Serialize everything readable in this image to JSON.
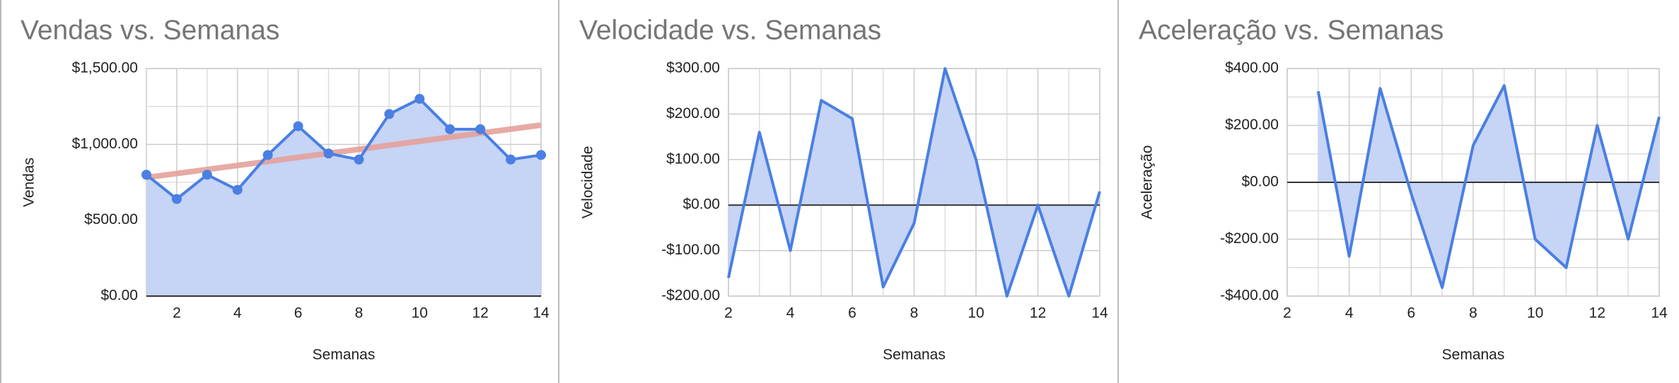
{
  "chart_data": [
    {
      "type": "area-line",
      "title": "Vendas vs. Semanas",
      "x_label": "Semanas",
      "y_label": "Vendas",
      "x": [
        1,
        2,
        3,
        4,
        5,
        6,
        7,
        8,
        9,
        10,
        11,
        12,
        13,
        14
      ],
      "series": [
        {
          "color": "#4a7fe3",
          "fill": "#c6d4f5",
          "markers": true,
          "values": [
            800,
            640,
            800,
            700,
            930,
            1120,
            940,
            900,
            1200,
            1300,
            1100,
            1100,
            900,
            930
          ]
        }
      ],
      "trendline": {
        "color": "#e3a19b"
      },
      "xlim": [
        1,
        14
      ],
      "xticks": [
        2,
        4,
        6,
        8,
        10,
        12,
        14
      ],
      "ylim": [
        0,
        1500
      ],
      "yticks": [
        {
          "value": 0,
          "label": "$0.00"
        },
        {
          "value": 500,
          "label": "$500.00"
        },
        {
          "value": 1000,
          "label": "$1,000.00"
        },
        {
          "value": 1500,
          "label": "$1,500.00"
        }
      ],
      "grid": true,
      "y_minor_grid": true
    },
    {
      "type": "area-line",
      "title": "Velocidade vs. Semanas",
      "x_label": "Semanas",
      "y_label": "Velocidade",
      "x": [
        1,
        2,
        3,
        4,
        5,
        6,
        7,
        8,
        9,
        10,
        11,
        12,
        13,
        14
      ],
      "series": [
        {
          "color": "#4a7fe3",
          "fill": "#c6d4f5",
          "markers": false,
          "values": [
            null,
            -160,
            160,
            -100,
            230,
            190,
            -180,
            -40,
            300,
            100,
            -200,
            0,
            -200,
            30
          ]
        }
      ],
      "xlim": [
        2,
        14
      ],
      "xticks": [
        2,
        4,
        6,
        8,
        10,
        12,
        14
      ],
      "ylim": [
        -200,
        300
      ],
      "yticks": [
        {
          "value": -200,
          "label": "-$200.00"
        },
        {
          "value": -100,
          "label": "-$100.00"
        },
        {
          "value": 0,
          "label": "$0.00"
        },
        {
          "value": 100,
          "label": "$100.00"
        },
        {
          "value": 200,
          "label": "$200.00"
        },
        {
          "value": 300,
          "label": "$300.00"
        }
      ],
      "grid": true,
      "y_minor_grid": false
    },
    {
      "type": "area-line",
      "title": "Aceleração vs. Semanas",
      "x_label": "Semanas",
      "y_label": "Aceleração",
      "x": [
        1,
        2,
        3,
        4,
        5,
        6,
        7,
        8,
        9,
        10,
        11,
        12,
        13,
        14
      ],
      "series": [
        {
          "color": "#4a7fe3",
          "fill": "#c6d4f5",
          "markers": false,
          "values": [
            null,
            null,
            320,
            -260,
            330,
            -40,
            -370,
            130,
            340,
            -200,
            -300,
            200,
            -200,
            230
          ]
        }
      ],
      "xlim": [
        2,
        14
      ],
      "xticks": [
        2,
        4,
        6,
        8,
        10,
        12,
        14
      ],
      "ylim": [
        -400,
        400
      ],
      "yticks": [
        {
          "value": -400,
          "label": "-$400.00"
        },
        {
          "value": -200,
          "label": "-$200.00"
        },
        {
          "value": 0,
          "label": "$0.00"
        },
        {
          "value": 200,
          "label": "$200.00"
        },
        {
          "value": 400,
          "label": "$400.00"
        }
      ],
      "grid": true,
      "y_minor_grid": true
    }
  ]
}
